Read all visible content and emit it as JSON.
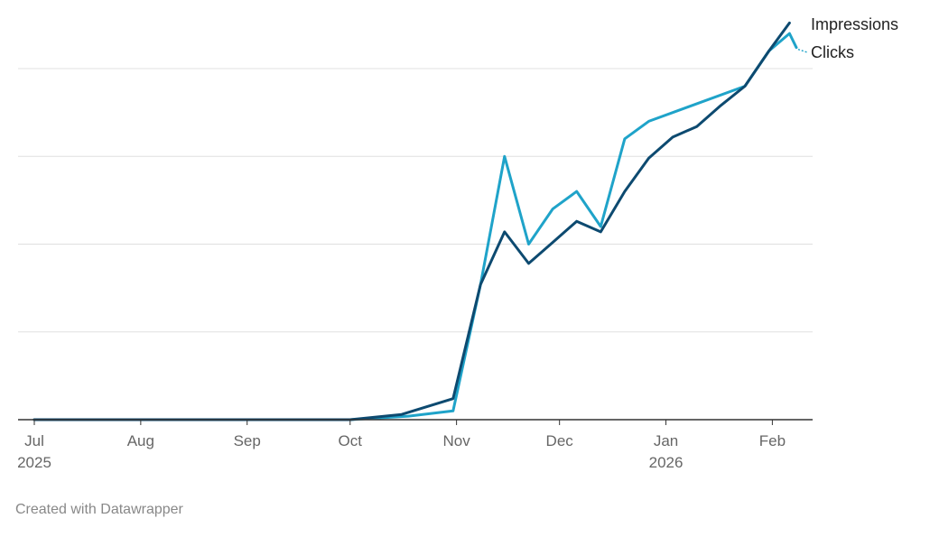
{
  "chart_data": {
    "type": "line",
    "title": "",
    "xlabel": "",
    "ylabel": "",
    "grid": true,
    "x_axis_type": "date",
    "x_range": [
      "2025-07-01",
      "2026-02-08"
    ],
    "y_range": [
      0,
      100
    ],
    "y_tick_labels_shown": false,
    "x_ticks": [
      {
        "date": "2025-07-01",
        "label": "Jul",
        "sublabel": "2025"
      },
      {
        "date": "2025-08-01",
        "label": "Aug",
        "sublabel": ""
      },
      {
        "date": "2025-09-01",
        "label": "Sep",
        "sublabel": ""
      },
      {
        "date": "2025-10-01",
        "label": "Oct",
        "sublabel": ""
      },
      {
        "date": "2025-11-01",
        "label": "Nov",
        "sublabel": ""
      },
      {
        "date": "2025-12-01",
        "label": "Dec",
        "sublabel": ""
      },
      {
        "date": "2026-01-01",
        "label": "Jan",
        "sublabel": "2026"
      },
      {
        "date": "2026-02-01",
        "label": "Feb",
        "sublabel": ""
      }
    ],
    "y_gridlines": [
      0,
      25,
      50,
      75,
      100
    ],
    "series": [
      {
        "name": "Clicks",
        "color": "#1fa3c9",
        "points": [
          [
            "2025-07-01",
            0
          ],
          [
            "2025-10-01",
            0
          ],
          [
            "2025-10-18",
            1
          ],
          [
            "2025-10-31",
            2.5
          ],
          [
            "2025-11-08",
            38.5
          ],
          [
            "2025-11-15",
            75
          ],
          [
            "2025-11-22",
            50
          ],
          [
            "2025-11-29",
            60
          ],
          [
            "2025-12-06",
            65
          ],
          [
            "2025-12-13",
            55
          ],
          [
            "2025-12-20",
            80
          ],
          [
            "2025-12-27",
            85
          ],
          [
            "2026-01-24",
            95
          ],
          [
            "2026-01-31",
            105
          ],
          [
            "2026-02-06",
            110
          ],
          [
            "2026-02-08",
            106
          ]
        ]
      },
      {
        "name": "Impressions",
        "color": "#0d4a70",
        "points": [
          [
            "2025-07-01",
            0
          ],
          [
            "2025-10-01",
            0
          ],
          [
            "2025-10-16",
            1.5
          ],
          [
            "2025-10-31",
            6
          ],
          [
            "2025-11-08",
            38.5
          ],
          [
            "2025-11-15",
            53.5
          ],
          [
            "2025-11-22",
            44.5
          ],
          [
            "2025-11-29",
            50.5
          ],
          [
            "2025-12-06",
            56.5
          ],
          [
            "2025-12-13",
            53.5
          ],
          [
            "2025-12-20",
            65
          ],
          [
            "2025-12-27",
            74.5
          ],
          [
            "2026-01-03",
            80.5
          ],
          [
            "2026-01-10",
            83.5
          ],
          [
            "2026-01-17",
            89.5
          ],
          [
            "2026-01-24",
            95
          ],
          [
            "2026-01-31",
            105
          ],
          [
            "2026-02-06",
            113
          ]
        ]
      }
    ],
    "legend": "direct-labels-right"
  },
  "footer": {
    "credit": "Created with Datawrapper"
  }
}
